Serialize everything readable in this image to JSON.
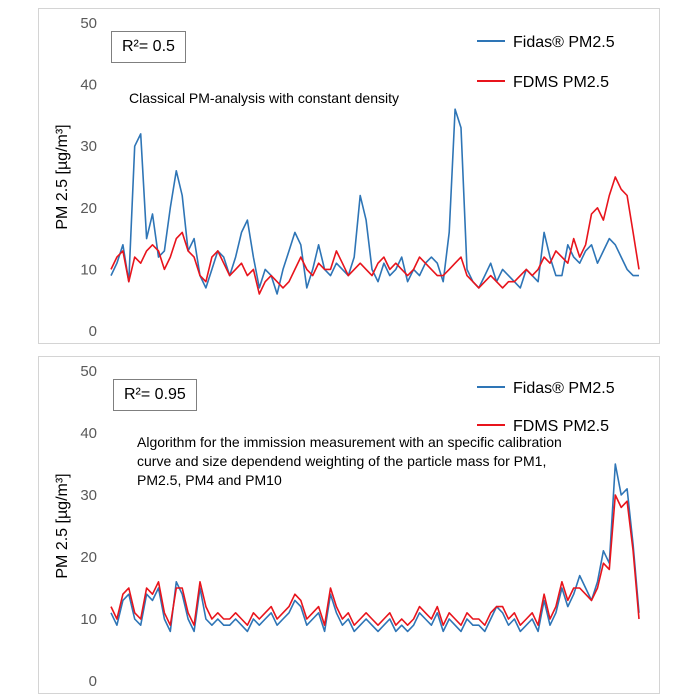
{
  "chart_data": [
    {
      "type": "line",
      "r2_label": "R²= 0.5",
      "annotation": "Classical PM-analysis with constant density",
      "ylabel": "PM 2.5 [µg/m³]",
      "ylim": [
        0,
        50
      ],
      "yticks": [
        0,
        10,
        20,
        30,
        40,
        50
      ],
      "grid": false,
      "legend_position": "top-right",
      "series": [
        {
          "name": "Fidas® PM2.5",
          "color": "#2e75b6",
          "values": [
            9,
            11,
            14,
            8,
            30,
            32,
            15,
            19,
            12,
            13,
            20,
            26,
            22,
            13,
            15,
            9,
            7,
            10,
            13,
            12,
            9,
            12,
            16,
            18,
            12,
            7,
            10,
            9,
            6,
            10,
            13,
            16,
            14,
            7,
            10,
            14,
            10,
            9,
            11,
            10,
            9,
            12,
            22,
            18,
            10,
            8,
            11,
            9,
            10,
            12,
            8,
            10,
            9,
            11,
            12,
            11,
            8,
            16,
            36,
            33,
            10,
            8,
            7,
            9,
            11,
            8,
            10,
            9,
            8,
            7,
            10,
            9,
            8,
            16,
            12,
            9,
            9,
            14,
            12,
            11,
            13,
            14,
            11,
            13,
            15,
            14,
            12,
            10,
            9,
            9
          ]
        },
        {
          "name": "FDMS PM2.5",
          "color": "#e8141c",
          "values": [
            10,
            12,
            13,
            8,
            12,
            11,
            13,
            14,
            13,
            10,
            12,
            15,
            16,
            13,
            12,
            9,
            8,
            12,
            13,
            11,
            9,
            10,
            11,
            9,
            10,
            6,
            8,
            9,
            8,
            7,
            8,
            10,
            12,
            10,
            9,
            11,
            10,
            10,
            13,
            11,
            9,
            10,
            11,
            10,
            9,
            11,
            12,
            10,
            11,
            10,
            9,
            10,
            12,
            11,
            10,
            9,
            9,
            10,
            11,
            12,
            9,
            8,
            7,
            8,
            9,
            8,
            7,
            8,
            8,
            9,
            10,
            9,
            10,
            12,
            11,
            13,
            12,
            11,
            15,
            12,
            14,
            19,
            20,
            18,
            22,
            25,
            23,
            22,
            16,
            10
          ]
        }
      ]
    },
    {
      "type": "line",
      "r2_label": "R²= 0.95",
      "annotation": "Algorithm for the immission measurement with an specific calibration curve and size dependend weighting of the particle mass for PM1, PM2.5, PM4 and PM10",
      "ylabel": "PM 2.5 [µg/m³]",
      "ylim": [
        0,
        50
      ],
      "yticks": [
        0,
        10,
        20,
        30,
        40,
        50
      ],
      "grid": false,
      "legend_position": "top-right",
      "series": [
        {
          "name": "Fidas® PM2.5",
          "color": "#2e75b6",
          "values": [
            11,
            9,
            13,
            14,
            10,
            9,
            14,
            13,
            15,
            10,
            8,
            16,
            14,
            10,
            8,
            15,
            10,
            9,
            10,
            9,
            9,
            10,
            9,
            8,
            10,
            9,
            10,
            11,
            9,
            10,
            11,
            13,
            12,
            9,
            10,
            11,
            8,
            14,
            11,
            9,
            10,
            8,
            9,
            10,
            9,
            8,
            9,
            10,
            8,
            9,
            8,
            9,
            11,
            10,
            9,
            11,
            8,
            10,
            9,
            8,
            10,
            9,
            9,
            8,
            10,
            12,
            11,
            9,
            10,
            8,
            9,
            10,
            8,
            13,
            9,
            11,
            15,
            12,
            14,
            17,
            15,
            13,
            16,
            21,
            19,
            35,
            30,
            31,
            22,
            11
          ]
        },
        {
          "name": "FDMS PM2.5",
          "color": "#e8141c",
          "values": [
            12,
            10,
            14,
            15,
            11,
            10,
            15,
            14,
            16,
            11,
            9,
            15,
            15,
            11,
            9,
            16,
            12,
            10,
            11,
            10,
            10,
            11,
            10,
            9,
            11,
            10,
            11,
            12,
            10,
            11,
            12,
            14,
            13,
            10,
            11,
            12,
            9,
            15,
            12,
            10,
            11,
            9,
            10,
            11,
            10,
            9,
            10,
            11,
            9,
            10,
            9,
            10,
            12,
            11,
            10,
            12,
            9,
            11,
            10,
            9,
            11,
            10,
            10,
            9,
            11,
            12,
            12,
            10,
            11,
            9,
            10,
            11,
            9,
            14,
            10,
            12,
            16,
            13,
            15,
            15,
            14,
            13,
            15,
            19,
            18,
            30,
            28,
            29,
            21,
            10
          ]
        }
      ]
    }
  ]
}
